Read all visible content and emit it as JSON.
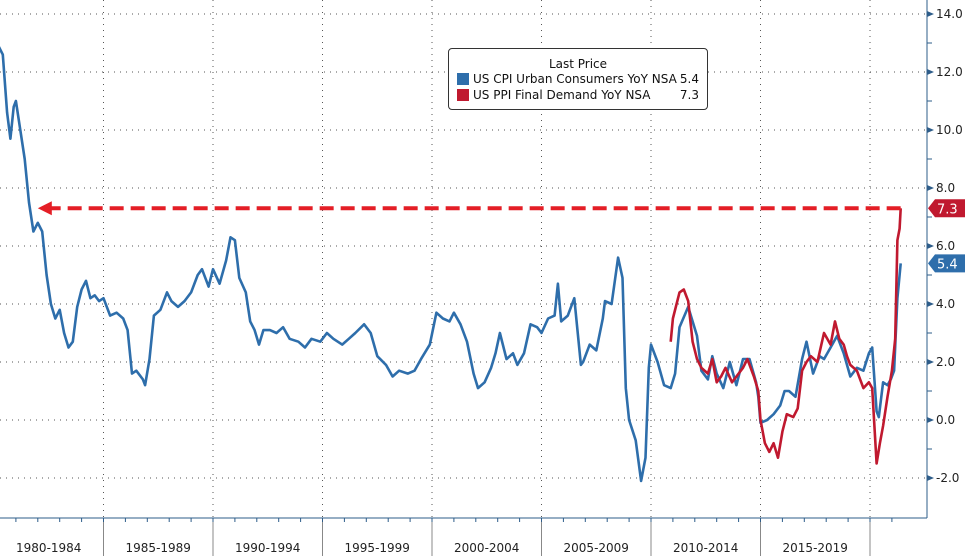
{
  "chart_data": {
    "type": "line",
    "title": "",
    "xlabel": "",
    "ylabel": "",
    "ylim": [
      -3.5,
      14.5
    ],
    "xlim": [
      1980,
      2022
    ],
    "yticks": [
      "14.0",
      "12.0",
      "10.0",
      "8.0",
      "6.0",
      "4.0",
      "2.0",
      "0.0",
      "-2.0"
    ],
    "ytick_values": [
      14,
      12,
      10,
      8,
      6,
      4,
      2,
      0,
      -2
    ],
    "xcategories": [
      "1980-1984",
      "1985-1989",
      "1990-1994",
      "1995-1999",
      "2000-2004",
      "2005-2009",
      "2010-2014",
      "2015-2019"
    ],
    "legend": {
      "title": "Last Price",
      "placement": "top-center"
    },
    "series": [
      {
        "name": "US CPI Urban Consumers YoY NSA",
        "last": "5.4",
        "color": "#2e6eab",
        "points": [
          [
            1980.0,
            13.1
          ],
          [
            1980.2,
            12.9
          ],
          [
            1980.4,
            12.6
          ],
          [
            1980.6,
            10.6
          ],
          [
            1980.75,
            9.7
          ],
          [
            1980.9,
            10.8
          ],
          [
            1981.0,
            11.0
          ],
          [
            1981.2,
            10.0
          ],
          [
            1981.4,
            9.0
          ],
          [
            1981.6,
            7.5
          ],
          [
            1981.8,
            6.5
          ],
          [
            1982.0,
            6.8
          ],
          [
            1982.2,
            6.5
          ],
          [
            1982.4,
            5.0
          ],
          [
            1982.6,
            4.0
          ],
          [
            1982.8,
            3.5
          ],
          [
            1983.0,
            3.8
          ],
          [
            1983.2,
            3.0
          ],
          [
            1983.4,
            2.5
          ],
          [
            1983.6,
            2.7
          ],
          [
            1983.8,
            3.9
          ],
          [
            1984.0,
            4.5
          ],
          [
            1984.2,
            4.8
          ],
          [
            1984.4,
            4.2
          ],
          [
            1984.6,
            4.3
          ],
          [
            1984.8,
            4.1
          ],
          [
            1985.0,
            4.2
          ],
          [
            1985.3,
            3.6
          ],
          [
            1985.6,
            3.7
          ],
          [
            1985.9,
            3.5
          ],
          [
            1986.1,
            3.1
          ],
          [
            1986.3,
            1.6
          ],
          [
            1986.5,
            1.7
          ],
          [
            1986.8,
            1.4
          ],
          [
            1986.9,
            1.2
          ],
          [
            1987.1,
            2.1
          ],
          [
            1987.3,
            3.6
          ],
          [
            1987.6,
            3.8
          ],
          [
            1987.9,
            4.4
          ],
          [
            1988.1,
            4.1
          ],
          [
            1988.4,
            3.9
          ],
          [
            1988.7,
            4.1
          ],
          [
            1989.0,
            4.4
          ],
          [
            1989.3,
            5.0
          ],
          [
            1989.5,
            5.2
          ],
          [
            1989.8,
            4.6
          ],
          [
            1990.0,
            5.2
          ],
          [
            1990.3,
            4.7
          ],
          [
            1990.6,
            5.5
          ],
          [
            1990.8,
            6.3
          ],
          [
            1991.0,
            6.2
          ],
          [
            1991.2,
            4.9
          ],
          [
            1991.5,
            4.4
          ],
          [
            1991.7,
            3.4
          ],
          [
            1991.9,
            3.1
          ],
          [
            1992.1,
            2.6
          ],
          [
            1992.3,
            3.1
          ],
          [
            1992.6,
            3.1
          ],
          [
            1992.9,
            3.0
          ],
          [
            1993.2,
            3.2
          ],
          [
            1993.5,
            2.8
          ],
          [
            1993.9,
            2.7
          ],
          [
            1994.2,
            2.5
          ],
          [
            1994.5,
            2.8
          ],
          [
            1994.9,
            2.7
          ],
          [
            1995.2,
            3.0
          ],
          [
            1995.5,
            2.8
          ],
          [
            1995.9,
            2.6
          ],
          [
            1996.2,
            2.8
          ],
          [
            1996.5,
            3.0
          ],
          [
            1996.9,
            3.3
          ],
          [
            1997.2,
            3.0
          ],
          [
            1997.5,
            2.2
          ],
          [
            1997.9,
            1.9
          ],
          [
            1998.2,
            1.5
          ],
          [
            1998.5,
            1.7
          ],
          [
            1998.9,
            1.6
          ],
          [
            1999.2,
            1.7
          ],
          [
            1999.5,
            2.1
          ],
          [
            1999.9,
            2.6
          ],
          [
            2000.2,
            3.7
          ],
          [
            2000.5,
            3.5
          ],
          [
            2000.8,
            3.4
          ],
          [
            2001.0,
            3.7
          ],
          [
            2001.3,
            3.3
          ],
          [
            2001.6,
            2.7
          ],
          [
            2001.9,
            1.6
          ],
          [
            2002.1,
            1.1
          ],
          [
            2002.4,
            1.3
          ],
          [
            2002.7,
            1.8
          ],
          [
            2002.9,
            2.3
          ],
          [
            2003.1,
            3.0
          ],
          [
            2003.4,
            2.1
          ],
          [
            2003.7,
            2.3
          ],
          [
            2003.9,
            1.9
          ],
          [
            2004.2,
            2.3
          ],
          [
            2004.5,
            3.3
          ],
          [
            2004.8,
            3.2
          ],
          [
            2005.0,
            3.0
          ],
          [
            2005.3,
            3.5
          ],
          [
            2005.6,
            3.6
          ],
          [
            2005.75,
            4.7
          ],
          [
            2005.9,
            3.4
          ],
          [
            2006.2,
            3.6
          ],
          [
            2006.5,
            4.2
          ],
          [
            2006.8,
            1.9
          ],
          [
            2006.9,
            2.0
          ],
          [
            2007.2,
            2.6
          ],
          [
            2007.5,
            2.4
          ],
          [
            2007.8,
            3.5
          ],
          [
            2007.9,
            4.1
          ],
          [
            2008.2,
            4.0
          ],
          [
            2008.5,
            5.6
          ],
          [
            2008.7,
            4.9
          ],
          [
            2008.85,
            1.1
          ],
          [
            2009.0,
            0.0
          ],
          [
            2009.3,
            -0.7
          ],
          [
            2009.55,
            -2.1
          ],
          [
            2009.75,
            -1.3
          ],
          [
            2009.9,
            1.8
          ],
          [
            2010.0,
            2.6
          ],
          [
            2010.3,
            2.0
          ],
          [
            2010.6,
            1.2
          ],
          [
            2010.9,
            1.1
          ],
          [
            2011.1,
            1.6
          ],
          [
            2011.3,
            3.2
          ],
          [
            2011.7,
            3.9
          ],
          [
            2011.9,
            3.4
          ],
          [
            2012.1,
            2.9
          ],
          [
            2012.3,
            1.7
          ],
          [
            2012.6,
            1.4
          ],
          [
            2012.8,
            2.2
          ],
          [
            2013.0,
            1.6
          ],
          [
            2013.3,
            1.1
          ],
          [
            2013.6,
            2.0
          ],
          [
            2013.9,
            1.2
          ],
          [
            2014.2,
            2.1
          ],
          [
            2014.5,
            2.1
          ],
          [
            2014.8,
            1.3
          ],
          [
            2014.9,
            0.8
          ],
          [
            2015.0,
            -0.1
          ],
          [
            2015.3,
            0.0
          ],
          [
            2015.6,
            0.2
          ],
          [
            2015.9,
            0.5
          ],
          [
            2016.1,
            1.0
          ],
          [
            2016.3,
            1.0
          ],
          [
            2016.6,
            0.8
          ],
          [
            2016.9,
            2.1
          ],
          [
            2017.1,
            2.7
          ],
          [
            2017.4,
            1.6
          ],
          [
            2017.7,
            2.2
          ],
          [
            2017.9,
            2.1
          ],
          [
            2018.2,
            2.5
          ],
          [
            2018.5,
            2.9
          ],
          [
            2018.8,
            2.3
          ],
          [
            2018.95,
            1.9
          ],
          [
            2019.1,
            1.5
          ],
          [
            2019.4,
            1.8
          ],
          [
            2019.7,
            1.7
          ],
          [
            2019.95,
            2.3
          ],
          [
            2020.1,
            2.5
          ],
          [
            2020.3,
            0.3
          ],
          [
            2020.4,
            0.1
          ],
          [
            2020.6,
            1.3
          ],
          [
            2020.8,
            1.2
          ],
          [
            2020.95,
            1.4
          ],
          [
            2021.1,
            1.7
          ],
          [
            2021.25,
            4.2
          ],
          [
            2021.35,
            5.0
          ],
          [
            2021.4,
            5.4
          ]
        ]
      },
      {
        "name": "US PPI Final Demand YoY NSA",
        "last": "7.3",
        "color": "#c0192f",
        "points": [
          [
            2010.9,
            2.7
          ],
          [
            2011.0,
            3.5
          ],
          [
            2011.3,
            4.4
          ],
          [
            2011.5,
            4.5
          ],
          [
            2011.7,
            4.1
          ],
          [
            2011.9,
            2.7
          ],
          [
            2012.1,
            2.1
          ],
          [
            2012.3,
            1.8
          ],
          [
            2012.6,
            1.6
          ],
          [
            2012.8,
            2.1
          ],
          [
            2013.0,
            1.3
          ],
          [
            2013.2,
            1.5
          ],
          [
            2013.4,
            1.8
          ],
          [
            2013.7,
            1.3
          ],
          [
            2013.9,
            1.5
          ],
          [
            2014.2,
            1.8
          ],
          [
            2014.4,
            2.1
          ],
          [
            2014.7,
            1.5
          ],
          [
            2014.9,
            1.0
          ],
          [
            2015.0,
            0.0
          ],
          [
            2015.2,
            -0.8
          ],
          [
            2015.4,
            -1.1
          ],
          [
            2015.6,
            -0.8
          ],
          [
            2015.8,
            -1.3
          ],
          [
            2016.0,
            -0.4
          ],
          [
            2016.2,
            0.2
          ],
          [
            2016.5,
            0.1
          ],
          [
            2016.7,
            0.4
          ],
          [
            2016.9,
            1.7
          ],
          [
            2017.1,
            2.0
          ],
          [
            2017.3,
            2.2
          ],
          [
            2017.6,
            2.0
          ],
          [
            2017.9,
            3.0
          ],
          [
            2018.2,
            2.6
          ],
          [
            2018.4,
            3.4
          ],
          [
            2018.6,
            2.8
          ],
          [
            2018.8,
            2.6
          ],
          [
            2018.95,
            2.2
          ],
          [
            2019.1,
            1.9
          ],
          [
            2019.4,
            1.7
          ],
          [
            2019.7,
            1.1
          ],
          [
            2019.95,
            1.3
          ],
          [
            2020.1,
            1.1
          ],
          [
            2020.3,
            -1.5
          ],
          [
            2020.45,
            -0.8
          ],
          [
            2020.6,
            -0.2
          ],
          [
            2020.8,
            0.8
          ],
          [
            2021.0,
            1.7
          ],
          [
            2021.15,
            2.8
          ],
          [
            2021.25,
            6.2
          ],
          [
            2021.35,
            6.6
          ],
          [
            2021.4,
            7.3
          ]
        ]
      }
    ],
    "annotations": [
      {
        "type": "dashed-arrow",
        "value": 7.3,
        "from_year": 2021.4,
        "to_year": 1982.0,
        "color": "#e41e26"
      }
    ]
  }
}
